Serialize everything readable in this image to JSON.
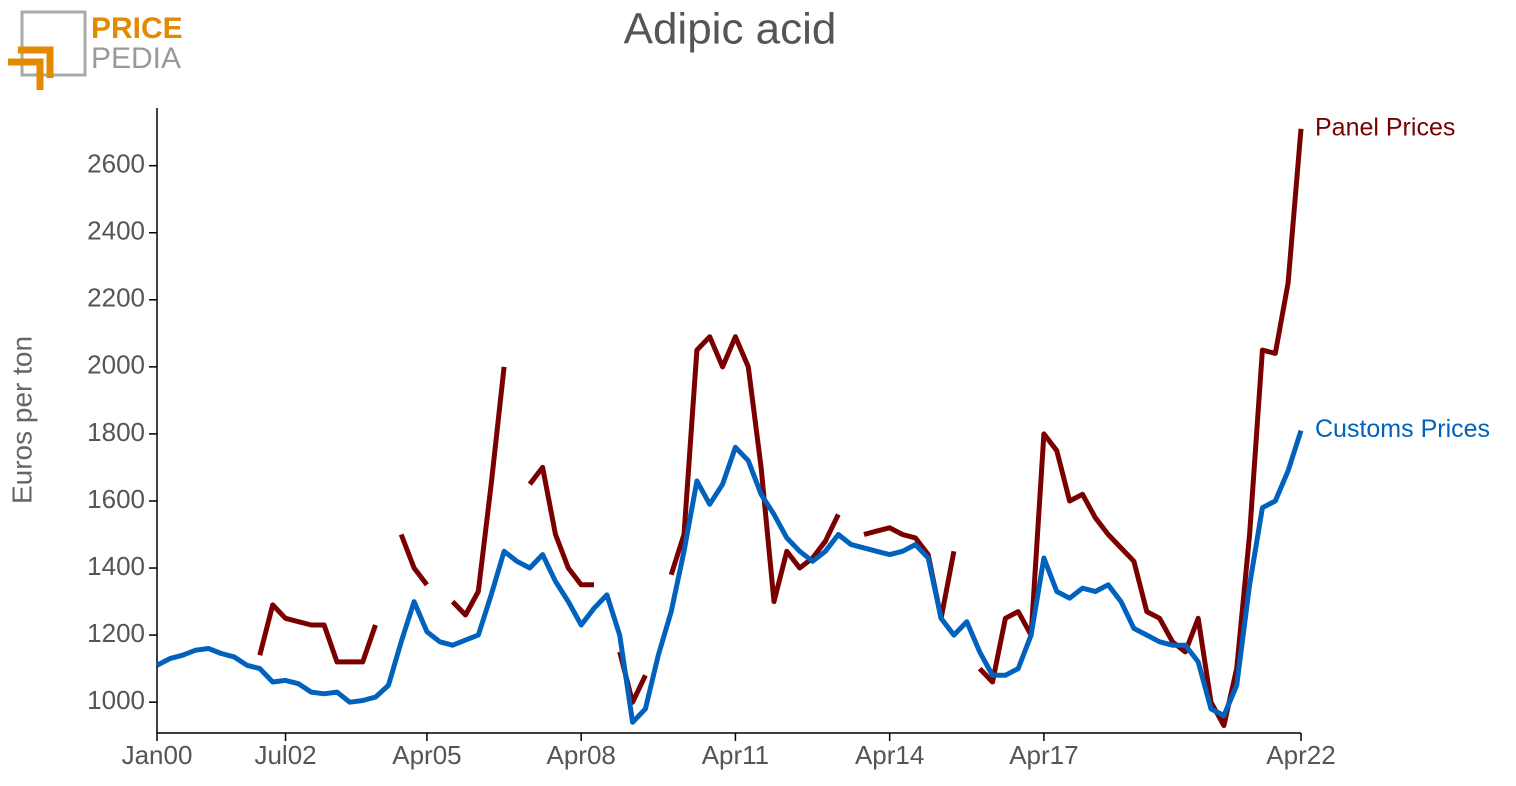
{
  "logo": {
    "line1": "PRICE",
    "line2": "PEDIA"
  },
  "chart_data": {
    "type": "line",
    "title": "Adipic acid",
    "y_label": "Euros per ton",
    "categories": [
      "Jan00",
      null,
      null,
      null,
      null,
      null,
      null,
      null,
      null,
      null,
      "Jul02",
      null,
      null,
      null,
      null,
      null,
      null,
      null,
      null,
      null,
      null,
      "Apr05",
      null,
      null,
      null,
      null,
      null,
      null,
      null,
      null,
      null,
      null,
      null,
      "Apr08",
      null,
      null,
      null,
      null,
      null,
      null,
      null,
      null,
      null,
      null,
      null,
      "Apr11",
      null,
      null,
      null,
      null,
      null,
      null,
      null,
      null,
      null,
      null,
      null,
      "Apr14",
      null,
      null,
      null,
      null,
      null,
      null,
      null,
      null,
      null,
      null,
      null,
      "Apr17",
      null,
      null,
      null,
      null,
      null,
      null,
      null,
      null,
      null,
      null,
      null,
      null,
      null,
      null,
      null,
      null,
      null,
      null,
      null,
      "Apr22"
    ],
    "series": [
      {
        "name": "Panel Prices",
        "color": "#7a0000",
        "values": [
          null,
          null,
          null,
          null,
          null,
          null,
          null,
          null,
          1140,
          1290,
          1250,
          1240,
          1230,
          1230,
          1120,
          1120,
          1120,
          1230,
          null,
          1500,
          1400,
          1350,
          null,
          1300,
          1260,
          1330,
          1650,
          2000,
          null,
          1650,
          1700,
          1500,
          1400,
          1350,
          1350,
          null,
          1150,
          1000,
          1080,
          null,
          1380,
          1500,
          2050,
          2090,
          2000,
          2090,
          2000,
          1700,
          1300,
          1450,
          1400,
          1430,
          1480,
          1560,
          null,
          1500,
          1510,
          1520,
          1500,
          1490,
          1440,
          1250,
          1450,
          null,
          1100,
          1060,
          1250,
          1270,
          1200,
          1800,
          1750,
          1600,
          1620,
          1550,
          1500,
          1460,
          1420,
          1270,
          1250,
          1180,
          1150,
          1250,
          1000,
          930,
          1100,
          1500,
          2050,
          2040,
          2250,
          2710
        ]
      },
      {
        "name": "Customs Prices",
        "color": "#0062bd",
        "values": [
          1110,
          1130,
          1140,
          1155,
          1160,
          1145,
          1135,
          1110,
          1100,
          1060,
          1065,
          1055,
          1030,
          1025,
          1030,
          1000,
          1005,
          1015,
          1050,
          1180,
          1300,
          1210,
          1180,
          1170,
          1185,
          1200,
          1320,
          1450,
          1420,
          1400,
          1440,
          1360,
          1300,
          1230,
          1280,
          1320,
          1200,
          940,
          980,
          1140,
          1270,
          1450,
          1660,
          1590,
          1650,
          1760,
          1720,
          1620,
          1560,
          1490,
          1450,
          1420,
          1450,
          1500,
          1470,
          1460,
          1450,
          1440,
          1450,
          1470,
          1430,
          1250,
          1200,
          1240,
          1150,
          1080,
          1080,
          1100,
          1200,
          1430,
          1330,
          1310,
          1340,
          1330,
          1350,
          1300,
          1220,
          1200,
          1180,
          1170,
          1170,
          1120,
          980,
          960,
          1050,
          1350,
          1580,
          1600,
          1690,
          1810
        ]
      }
    ],
    "ylim": [
      908,
      2772
    ],
    "yticks": [
      1000,
      1200,
      1400,
      1600,
      1800,
      2000,
      2200,
      2400,
      2600
    ]
  }
}
